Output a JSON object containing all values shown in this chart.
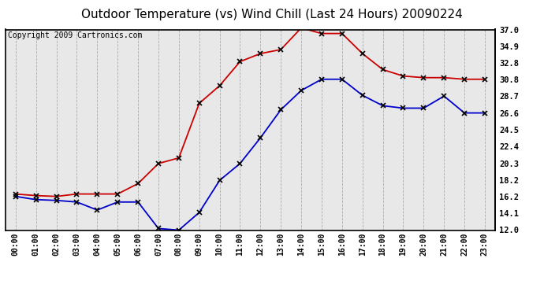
{
  "title": "Outdoor Temperature (vs) Wind Chill (Last 24 Hours) 20090224",
  "copyright": "Copyright 2009 Cartronics.com",
  "x_labels": [
    "00:00",
    "01:00",
    "02:00",
    "03:00",
    "04:00",
    "05:00",
    "06:00",
    "07:00",
    "08:00",
    "09:00",
    "10:00",
    "11:00",
    "12:00",
    "13:00",
    "14:00",
    "15:00",
    "16:00",
    "17:00",
    "18:00",
    "19:00",
    "20:00",
    "21:00",
    "22:00",
    "23:00"
  ],
  "temp_red": [
    16.5,
    16.3,
    16.2,
    16.5,
    16.5,
    16.5,
    17.8,
    20.3,
    21.0,
    27.8,
    30.0,
    33.0,
    34.0,
    34.5,
    37.2,
    36.5,
    36.5,
    34.0,
    32.0,
    31.2,
    31.0,
    31.0,
    30.8,
    30.8
  ],
  "wind_chill_blue": [
    16.2,
    15.8,
    15.7,
    15.5,
    14.5,
    15.5,
    15.5,
    12.2,
    12.0,
    14.2,
    18.2,
    20.3,
    23.5,
    27.0,
    29.4,
    30.8,
    30.8,
    28.8,
    27.5,
    27.2,
    27.2,
    28.7,
    26.6,
    26.6
  ],
  "ylim_min": 12.0,
  "ylim_max": 37.0,
  "yticks": [
    12.0,
    14.1,
    16.2,
    18.2,
    20.3,
    22.4,
    24.5,
    26.6,
    28.7,
    30.8,
    32.8,
    34.9,
    37.0
  ],
  "red_color": "#cc0000",
  "blue_color": "#0000cc",
  "bg_color": "#e8e8e8",
  "plot_bg": "#e8e8e8",
  "grid_color": "#aaaaaa",
  "title_fontsize": 11,
  "copyright_fontsize": 7
}
